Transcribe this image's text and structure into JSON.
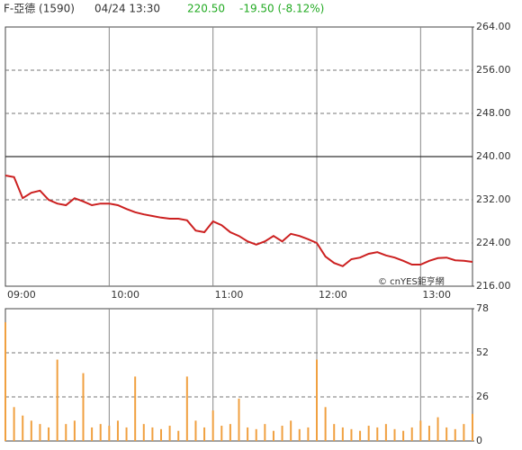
{
  "header": {
    "name": "F-亞德 (1590)",
    "datetime": "04/24 13:30",
    "price": "220.50",
    "change": "-19.50 (-8.12%)"
  },
  "chart_data": [
    {
      "type": "line",
      "watermark": "© cnYES鉅亨網",
      "x": [
        "09:00",
        "09:05",
        "09:10",
        "09:15",
        "09:20",
        "09:25",
        "09:30",
        "09:35",
        "09:40",
        "09:45",
        "09:50",
        "09:55",
        "10:00",
        "10:05",
        "10:10",
        "10:15",
        "10:20",
        "10:25",
        "10:30",
        "10:35",
        "10:40",
        "10:45",
        "10:50",
        "10:55",
        "11:00",
        "11:05",
        "11:10",
        "11:15",
        "11:20",
        "11:25",
        "11:30",
        "11:35",
        "11:40",
        "11:45",
        "11:50",
        "11:55",
        "12:00",
        "12:05",
        "12:10",
        "12:15",
        "12:20",
        "12:25",
        "12:30",
        "12:35",
        "12:40",
        "12:45",
        "12:50",
        "12:55",
        "13:00",
        "13:05",
        "13:10",
        "13:15",
        "13:20",
        "13:25",
        "13:30"
      ],
      "xlim": [
        "09:00",
        "13:30"
      ],
      "xticks": [
        "09:00",
        "10:00",
        "11:00",
        "12:00",
        "13:00"
      ],
      "series": [
        {
          "color": "#cc2020",
          "values": [
            236.5,
            236.2,
            232.3,
            233.3,
            233.7,
            232,
            231.3,
            231,
            232.3,
            231.7,
            231,
            231.3,
            231.3,
            231,
            230.3,
            229.7,
            229.3,
            229,
            228.7,
            228.5,
            228.5,
            228.2,
            226.3,
            226,
            228,
            227.3,
            226,
            225.3,
            224.3,
            223.7,
            224.3,
            225.3,
            224.3,
            225.7,
            225.3,
            224.7,
            224,
            221.5,
            220.3,
            219.7,
            221,
            221.3,
            222,
            222.3,
            221.7,
            221.3,
            220.7,
            220,
            220,
            220.7,
            221.2,
            221.3,
            220.8,
            220.7,
            220.5
          ]
        }
      ],
      "ylim": [
        216,
        264
      ],
      "yticks": [
        {
          "value": 216,
          "label": "216.00"
        },
        {
          "value": 224,
          "label": "224.00"
        },
        {
          "value": 232,
          "label": "232.00"
        },
        {
          "value": 240,
          "label": "240.00"
        },
        {
          "value": 248,
          "label": "248.00"
        },
        {
          "value": 256,
          "label": "256.00"
        },
        {
          "value": 264,
          "label": "264.00"
        }
      ],
      "reference_line": 240,
      "grid": true
    },
    {
      "type": "bar",
      "x": [
        "09:00",
        "09:05",
        "09:10",
        "09:15",
        "09:20",
        "09:25",
        "09:30",
        "09:35",
        "09:40",
        "09:45",
        "09:50",
        "09:55",
        "10:00",
        "10:05",
        "10:10",
        "10:15",
        "10:20",
        "10:25",
        "10:30",
        "10:35",
        "10:40",
        "10:45",
        "10:50",
        "10:55",
        "11:00",
        "11:05",
        "11:10",
        "11:15",
        "11:20",
        "11:25",
        "11:30",
        "11:35",
        "11:40",
        "11:45",
        "11:50",
        "11:55",
        "12:00",
        "12:05",
        "12:10",
        "12:15",
        "12:20",
        "12:25",
        "12:30",
        "12:35",
        "12:40",
        "12:45",
        "12:50",
        "12:55",
        "13:00",
        "13:05",
        "13:10",
        "13:15",
        "13:20",
        "13:25",
        "13:30"
      ],
      "xlim": [
        "09:00",
        "13:30"
      ],
      "xticks": [
        "09:00",
        "10:00",
        "11:00",
        "12:00",
        "13:00"
      ],
      "values": [
        70,
        20,
        15,
        12,
        10,
        8,
        48,
        10,
        12,
        40,
        8,
        10,
        9,
        12,
        8,
        38,
        10,
        8,
        7,
        9,
        6,
        38,
        12,
        8,
        18,
        9,
        10,
        25,
        8,
        7,
        10,
        6,
        9,
        12,
        7,
        8,
        48,
        20,
        10,
        8,
        7,
        6,
        9,
        8,
        10,
        7,
        6,
        8,
        12,
        9,
        14,
        8,
        7,
        10,
        16
      ],
      "color": "#f0a040",
      "ylim": [
        0,
        78
      ],
      "yticks": [
        0,
        26,
        52,
        78
      ],
      "grid": true
    }
  ]
}
